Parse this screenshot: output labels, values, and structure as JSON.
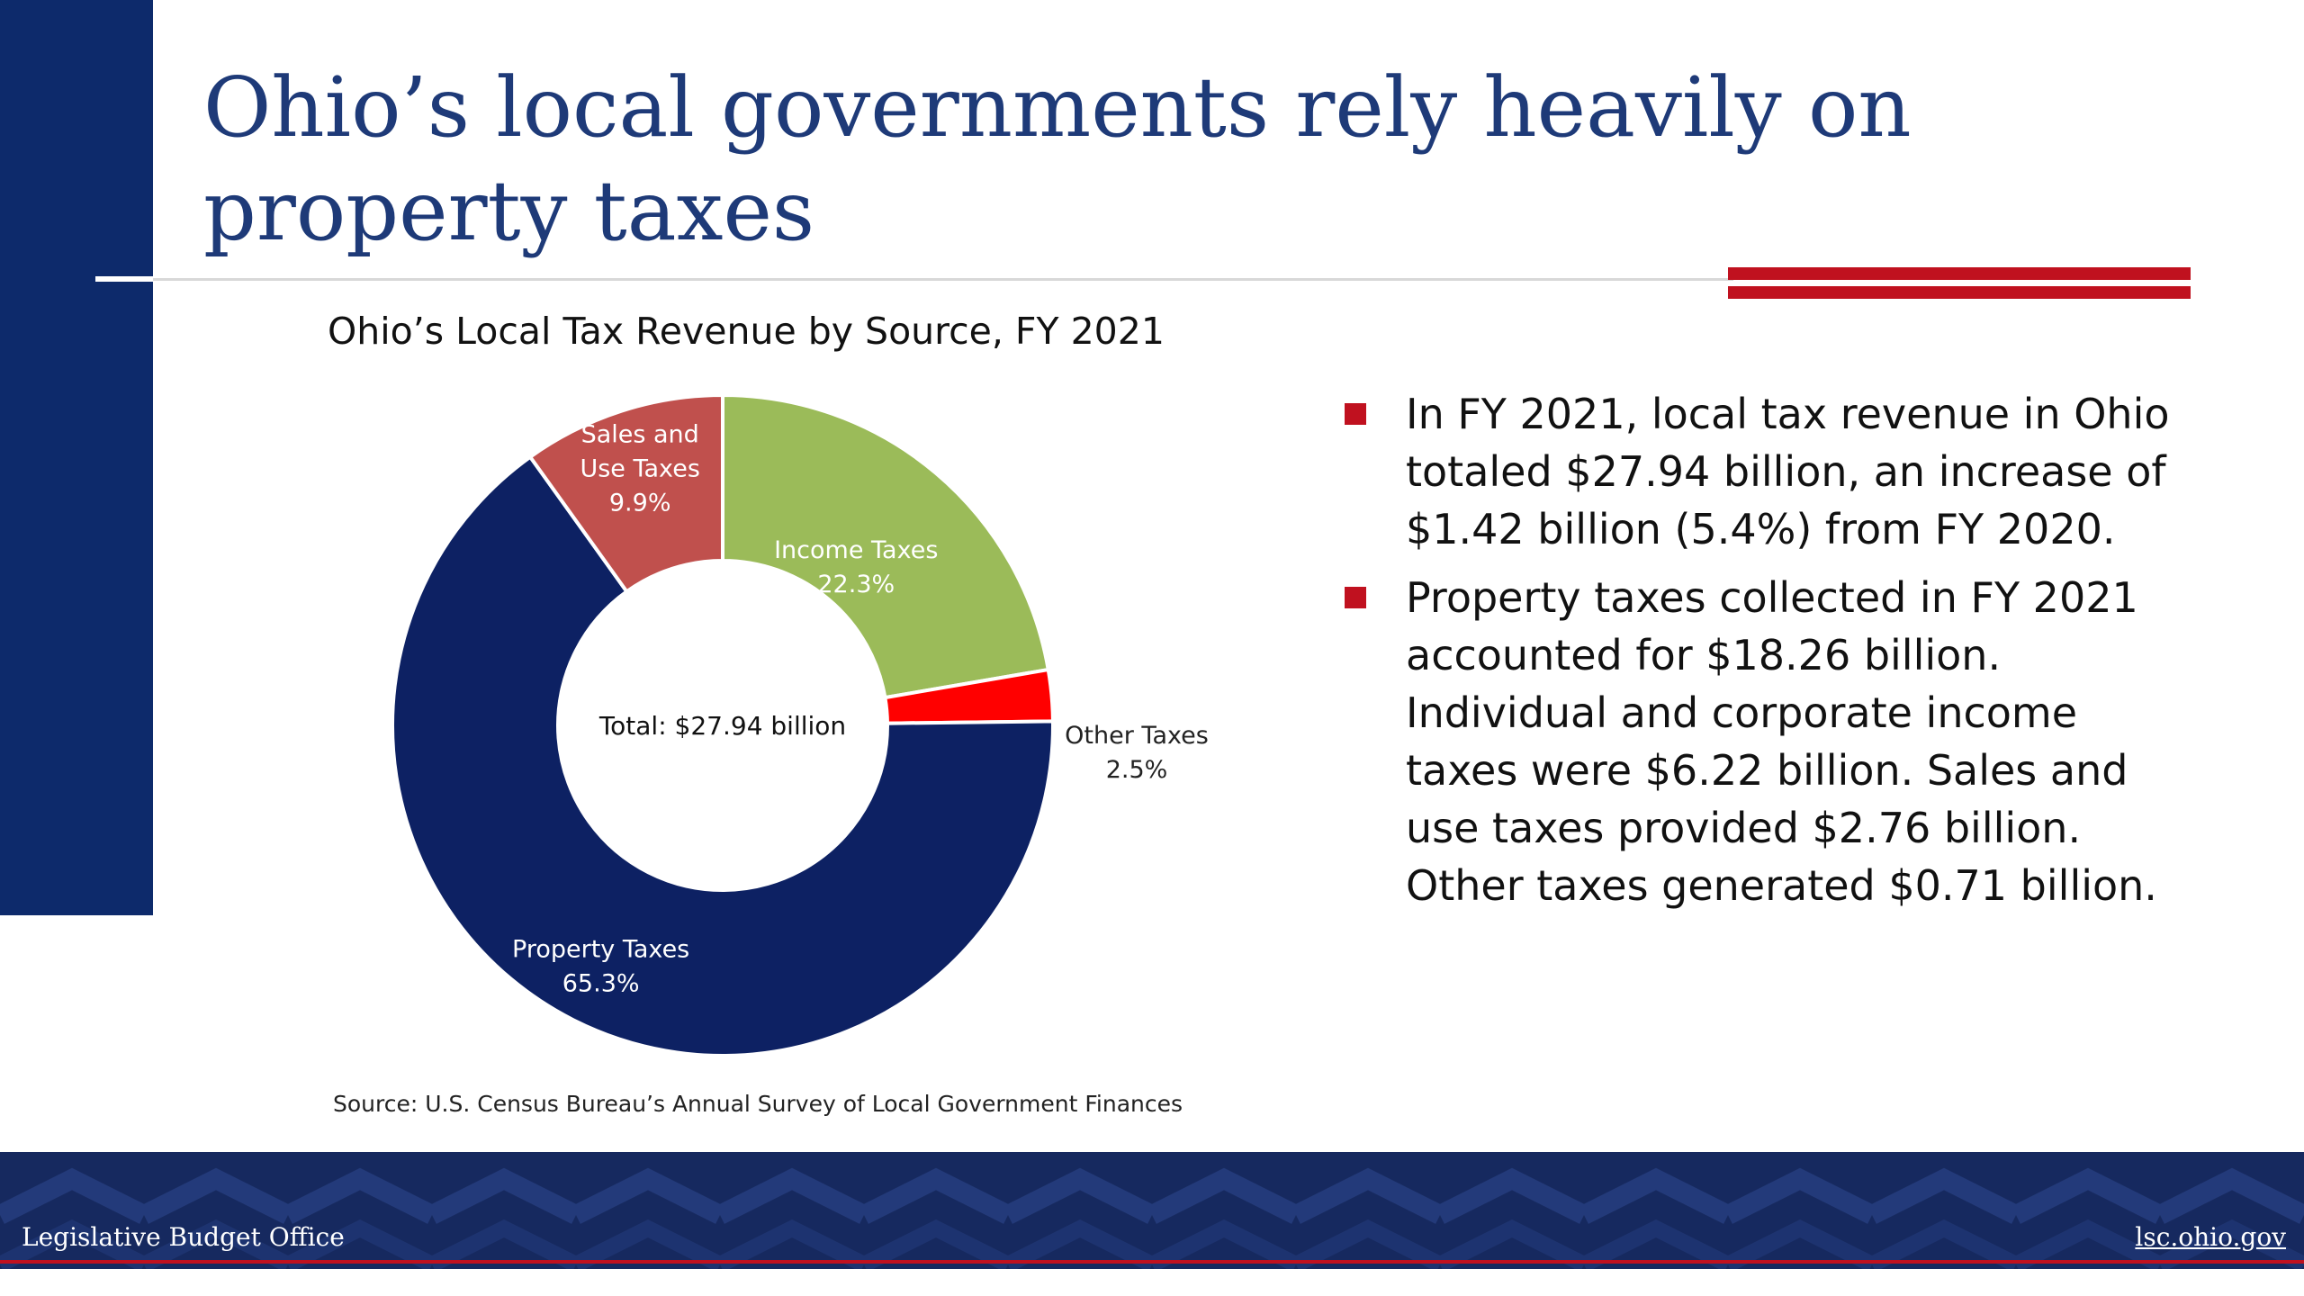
{
  "slide": {
    "title": "Ohio’s local governments rely heavily on property taxes",
    "source": "Source: U.S. Census Bureau’s Annual Survey of Local Government Finances"
  },
  "colors": {
    "navy": "#0d2a6b",
    "title_blue": "#1e3a78",
    "accent_red": "#c0111f",
    "property": "#0d2163",
    "sales": "#c0504d",
    "income": "#9bbb59",
    "other": "#ff0000"
  },
  "chart_data": {
    "type": "pie",
    "variant": "donut",
    "title": "Ohio’s Local Tax Revenue by Source, FY 2021",
    "center_label": "Total: $27.94 billion",
    "start_angle_deg": 90,
    "slices": [
      {
        "label_lines": [
          "Income Taxes",
          "22.3%"
        ],
        "value": 22.3,
        "color": "#9bbb59",
        "text_color": "#ffffff"
      },
      {
        "label_lines": [
          "Other Taxes",
          "2.5%"
        ],
        "value": 2.5,
        "color": "#ff0000",
        "text_color": "#222222"
      },
      {
        "label_lines": [
          "Property Taxes",
          "65.3%"
        ],
        "value": 65.3,
        "color": "#0d2163",
        "text_color": "#ffffff"
      },
      {
        "label_lines": [
          "Sales and",
          "Use Taxes",
          "9.9%"
        ],
        "value": 9.9,
        "color": "#c0504d",
        "text_color": "#ffffff"
      }
    ]
  },
  "bullets": [
    "In FY 2021, local tax revenue in Ohio totaled $27.94 billion, an increase of $1.42 billion (5.4%) from FY 2020.",
    "Property taxes collected in FY 2021 accounted for $18.26 billion. Individual and corporate income taxes were $6.22 billion. Sales and use taxes provided $2.76 billion. Other taxes generated $0.71 billion."
  ],
  "footer": {
    "left": "Legislative Budget Office",
    "right": "lsc.ohio.gov"
  }
}
